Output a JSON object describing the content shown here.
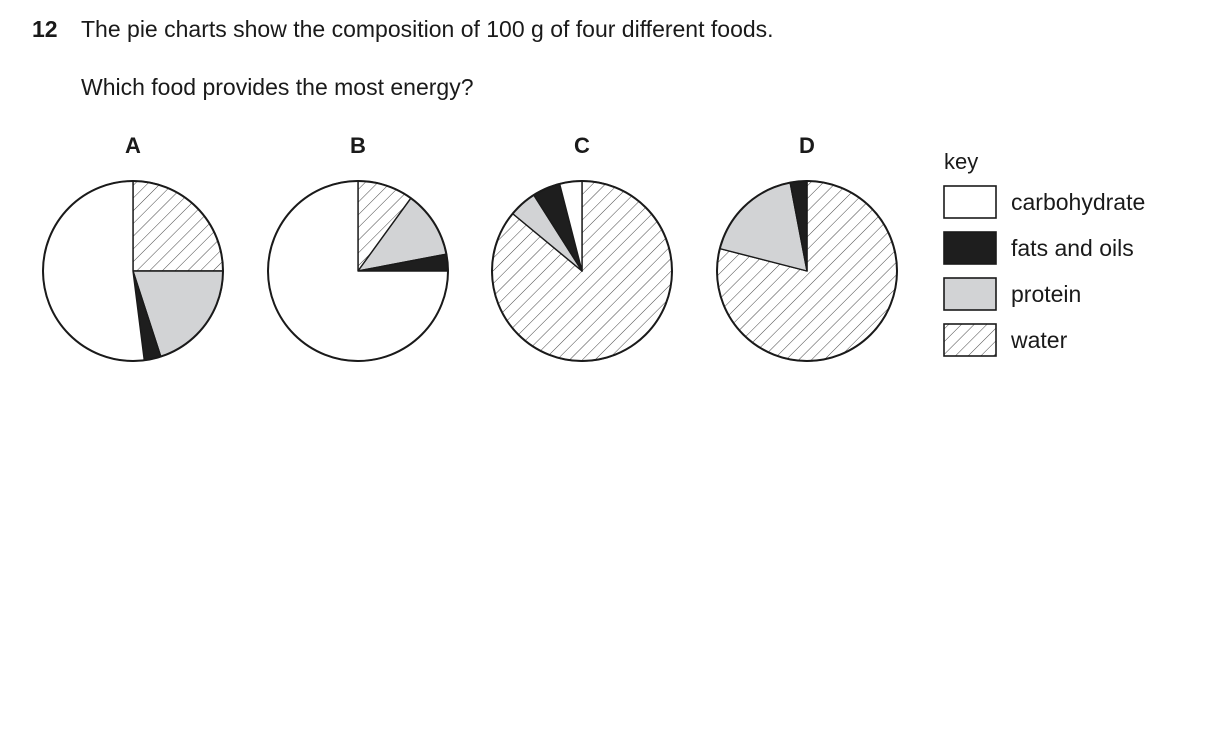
{
  "question": {
    "number": "12",
    "stem": "The pie charts show the composition of 100 g of four different foods.",
    "ask": "Which food provides the most energy?"
  },
  "chart_data": {
    "type": "pie",
    "key_title": "key",
    "categories": [
      "carbohydrate",
      "fats and oils",
      "protein",
      "water"
    ],
    "legend_position": "right",
    "styles": {
      "carbohydrate": {
        "fill": "#ffffff",
        "pattern": "none"
      },
      "fats and oils": {
        "fill": "#1e1e1e",
        "pattern": "none"
      },
      "protein": {
        "fill": "#d2d3d5",
        "pattern": "none"
      },
      "water": {
        "fill": "#ffffff",
        "pattern": "hatch"
      }
    },
    "pies": [
      {
        "title": "A",
        "slices": [
          {
            "category": "water",
            "value": 25
          },
          {
            "category": "protein",
            "value": 20
          },
          {
            "category": "fats and oils",
            "value": 3
          },
          {
            "category": "carbohydrate",
            "value": 52
          }
        ]
      },
      {
        "title": "B",
        "slices": [
          {
            "category": "water",
            "value": 10
          },
          {
            "category": "protein",
            "value": 12
          },
          {
            "category": "fats and oils",
            "value": 3
          },
          {
            "category": "carbohydrate",
            "value": 75
          }
        ]
      },
      {
        "title": "C",
        "slices": [
          {
            "category": "water",
            "value": 86
          },
          {
            "category": "protein",
            "value": 5
          },
          {
            "category": "fats and oils",
            "value": 5
          },
          {
            "category": "carbohydrate",
            "value": 4
          }
        ]
      },
      {
        "title": "D",
        "slices": [
          {
            "category": "water",
            "value": 79
          },
          {
            "category": "protein",
            "value": 18
          },
          {
            "category": "fats and oils",
            "value": 3
          }
        ]
      }
    ]
  }
}
